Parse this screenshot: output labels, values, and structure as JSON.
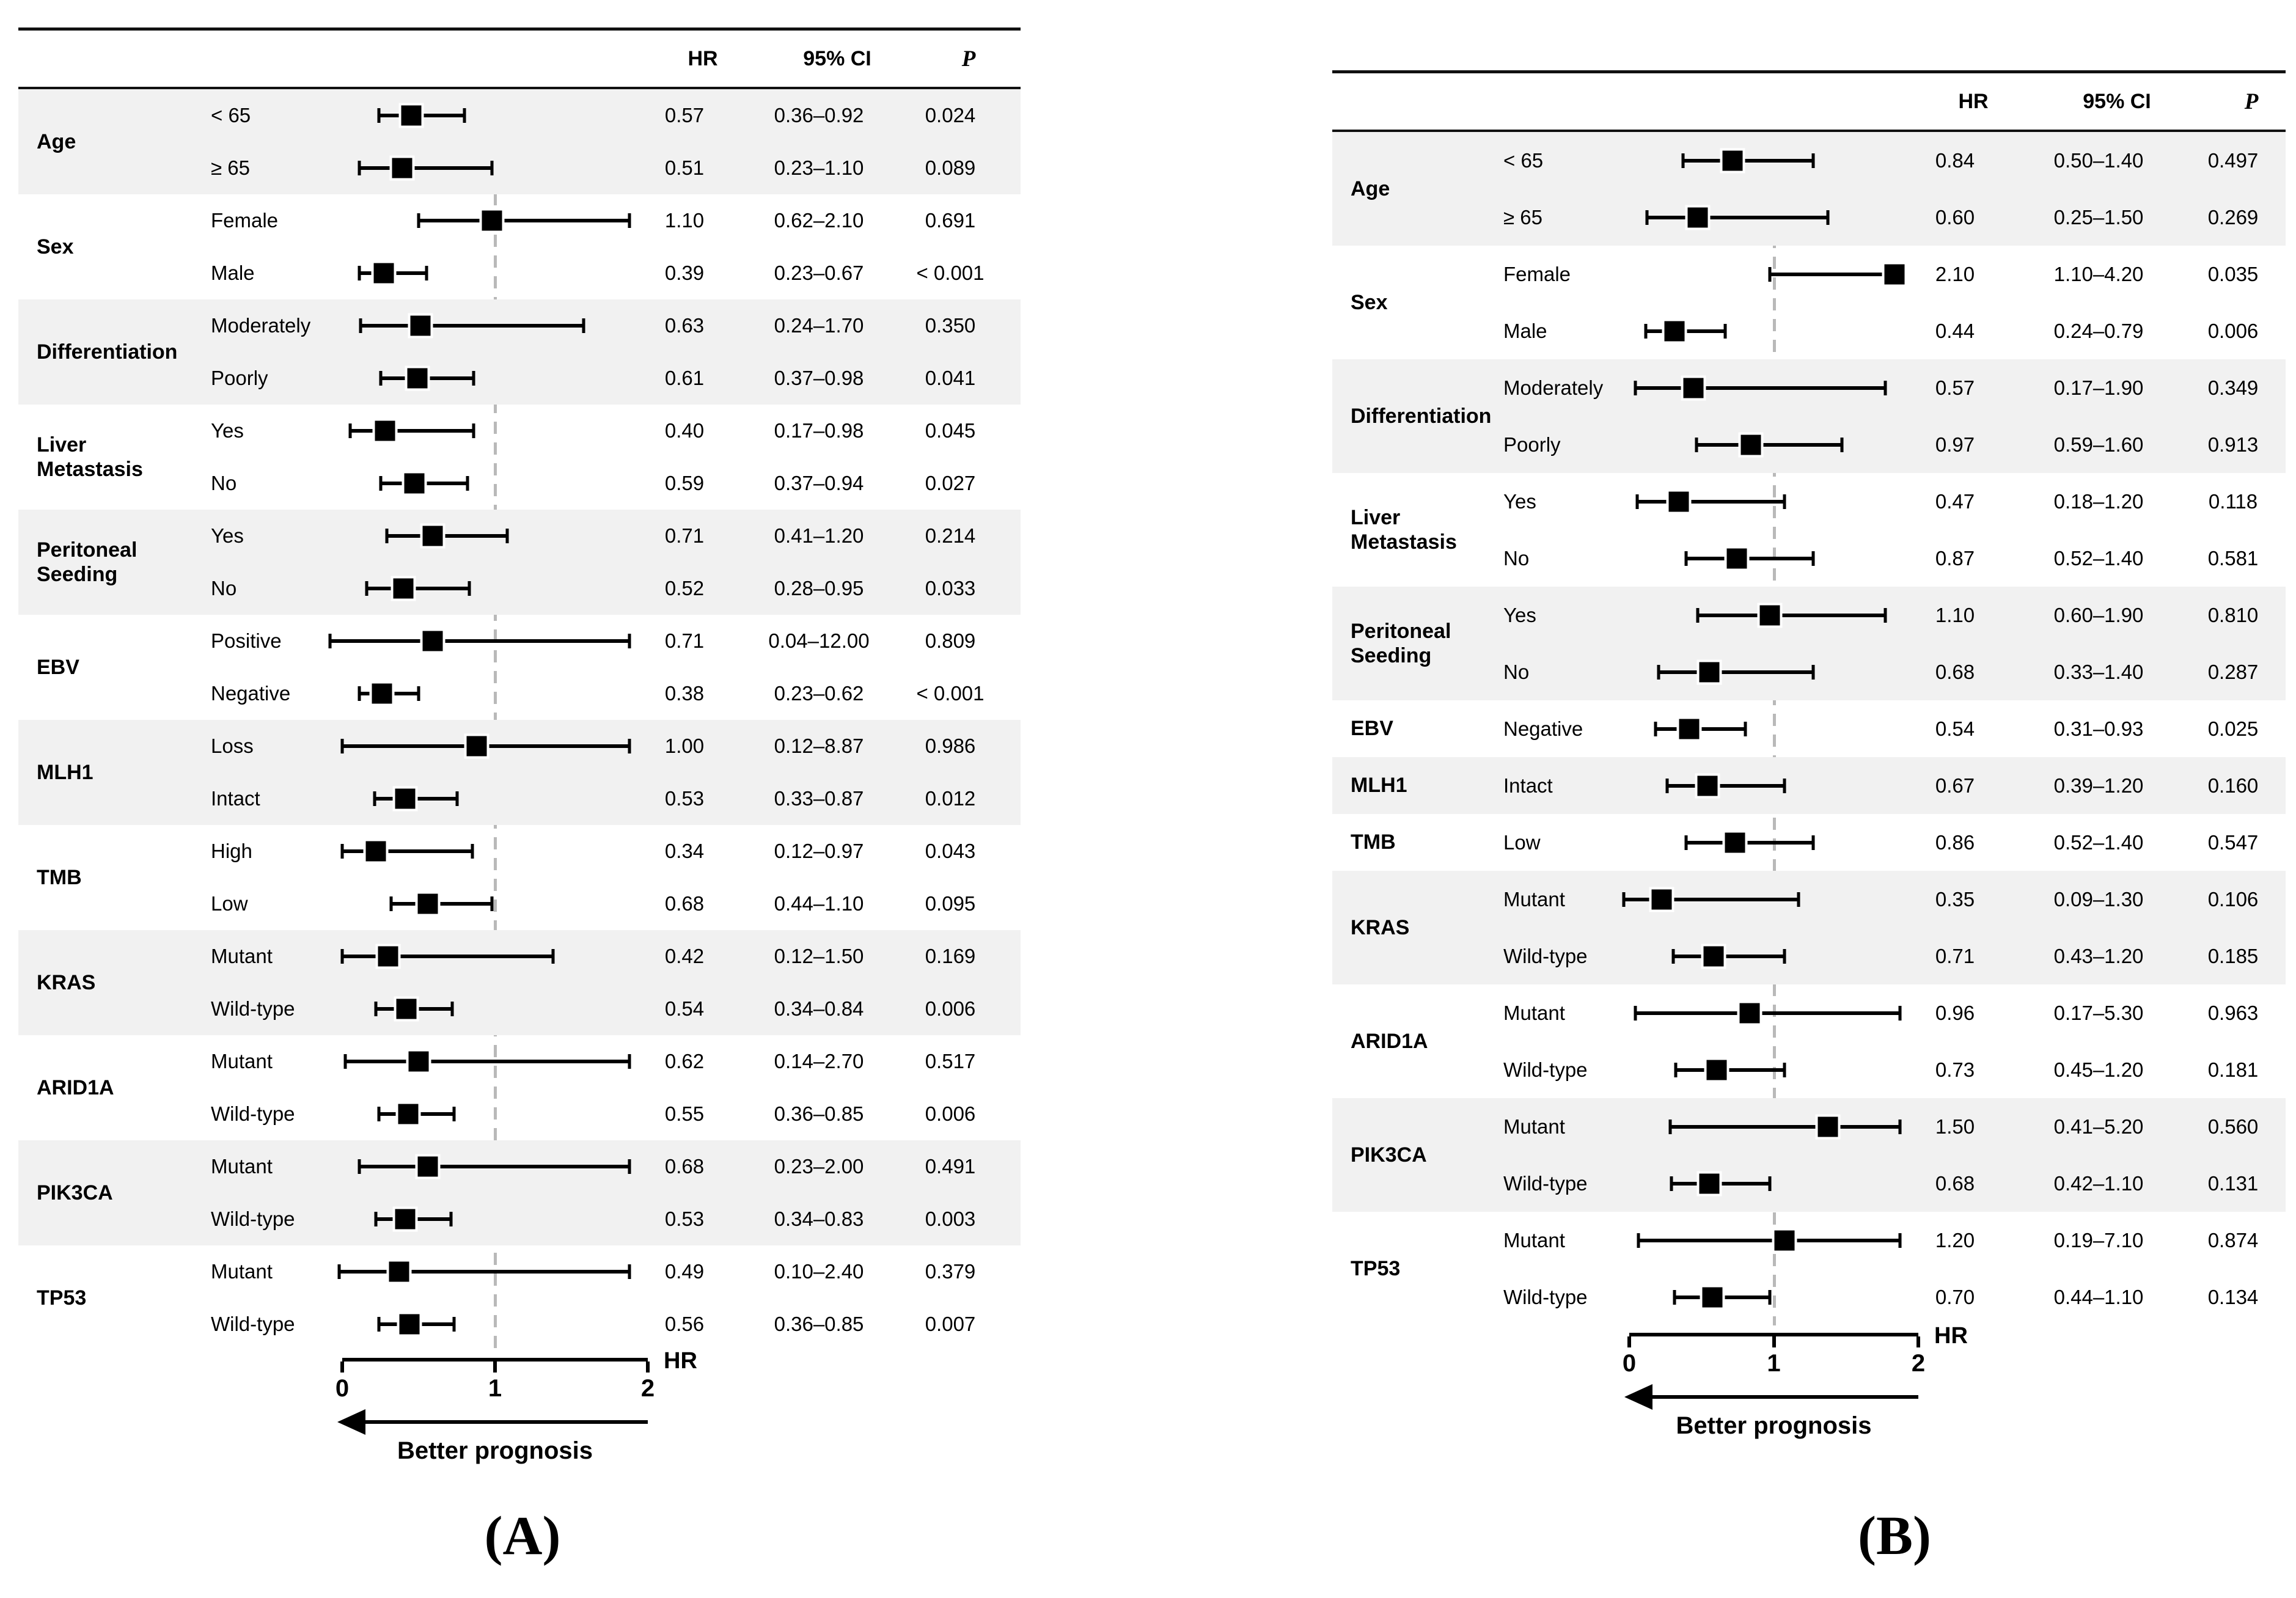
{
  "figure": {
    "captions": {
      "a": "(A)",
      "b": "(B)"
    },
    "colors": {
      "shade": "#f1f1f1",
      "dashed_reference_line": "#b9b9b9",
      "ink": "#000000"
    },
    "better_prognosis_label": "Better prognosis",
    "axis_label": "HR"
  },
  "chart_data": [
    {
      "type": "forest",
      "panel": "A",
      "columns": [
        "HR",
        "95% CI",
        "P"
      ],
      "xlabel": "HR",
      "xlim": [
        0,
        2
      ],
      "x_ticks": [
        "0",
        "1",
        "2"
      ],
      "reference_line": 1,
      "arrow_label": "Better prognosis",
      "legend_position": "none",
      "groups": [
        {
          "category": "Age",
          "rows": [
            {
              "label": "< 65",
              "hr": 0.57,
              "lo": 0.36,
              "hi": 0.92,
              "hr_text": "0.57",
              "ci_text": "0.36–0.92",
              "p_text": "0.024"
            },
            {
              "label": "≥ 65",
              "hr": 0.51,
              "lo": 0.23,
              "hi": 1.1,
              "hr_text": "0.51",
              "ci_text": "0.23–1.10",
              "p_text": "0.089"
            }
          ]
        },
        {
          "category": "Sex",
          "rows": [
            {
              "label": "Female",
              "hr": 1.1,
              "lo": 0.62,
              "hi": 2.1,
              "hr_text": "1.10",
              "ci_text": "0.62–2.10",
              "p_text": "0.691"
            },
            {
              "label": "Male",
              "hr": 0.39,
              "lo": 0.23,
              "hi": 0.67,
              "hr_text": "0.39",
              "ci_text": "0.23–0.67",
              "p_text": "< 0.001"
            }
          ]
        },
        {
          "category": "Differentiation",
          "rows": [
            {
              "label": "Moderately",
              "hr": 0.63,
              "lo": 0.24,
              "hi": 1.7,
              "hr_text": "0.63",
              "ci_text": "0.24–1.70",
              "p_text": "0.350"
            },
            {
              "label": "Poorly",
              "hr": 0.61,
              "lo": 0.37,
              "hi": 0.98,
              "hr_text": "0.61",
              "ci_text": "0.37–0.98",
              "p_text": "0.041"
            }
          ]
        },
        {
          "category": "Liver\nMetastasis",
          "rows": [
            {
              "label": "Yes",
              "hr": 0.4,
              "lo": 0.17,
              "hi": 0.98,
              "hr_text": "0.40",
              "ci_text": "0.17–0.98",
              "p_text": "0.045"
            },
            {
              "label": "No",
              "hr": 0.59,
              "lo": 0.37,
              "hi": 0.94,
              "hr_text": "0.59",
              "ci_text": "0.37–0.94",
              "p_text": "0.027"
            }
          ]
        },
        {
          "category": "Peritoneal\nSeeding",
          "rows": [
            {
              "label": "Yes",
              "hr": 0.71,
              "lo": 0.41,
              "hi": 1.2,
              "hr_text": "0.71",
              "ci_text": "0.41–1.20",
              "p_text": "0.214"
            },
            {
              "label": "No",
              "hr": 0.52,
              "lo": 0.28,
              "hi": 0.95,
              "hr_text": "0.52",
              "ci_text": "0.28–0.95",
              "p_text": "0.033"
            }
          ]
        },
        {
          "category": "EBV",
          "rows": [
            {
              "label": "Positive",
              "hr": 0.71,
              "lo": 0.04,
              "hi": 12.0,
              "hr_text": "0.71",
              "ci_text": "0.04–12.00",
              "p_text": "0.809"
            },
            {
              "label": "Negative",
              "hr": 0.38,
              "lo": 0.23,
              "hi": 0.62,
              "hr_text": "0.38",
              "ci_text": "0.23–0.62",
              "p_text": "< 0.001"
            }
          ]
        },
        {
          "category": "MLH1",
          "rows": [
            {
              "label": "Loss",
              "hr": 1.0,
              "lo": 0.12,
              "hi": 8.87,
              "hr_text": "1.00",
              "ci_text": "0.12–8.87",
              "p_text": "0.986"
            },
            {
              "label": "Intact",
              "hr": 0.53,
              "lo": 0.33,
              "hi": 0.87,
              "hr_text": "0.53",
              "ci_text": "0.33–0.87",
              "p_text": "0.012"
            }
          ]
        },
        {
          "category": "TMB",
          "rows": [
            {
              "label": "High",
              "hr": 0.34,
              "lo": 0.12,
              "hi": 0.97,
              "hr_text": "0.34",
              "ci_text": "0.12–0.97",
              "p_text": "0.043"
            },
            {
              "label": "Low",
              "hr": 0.68,
              "lo": 0.44,
              "hi": 1.1,
              "hr_text": "0.68",
              "ci_text": "0.44–1.10",
              "p_text": "0.095"
            }
          ]
        },
        {
          "category": "KRAS",
          "rows": [
            {
              "label": "Mutant",
              "hr": 0.42,
              "lo": 0.12,
              "hi": 1.5,
              "hr_text": "0.42",
              "ci_text": "0.12–1.50",
              "p_text": "0.169"
            },
            {
              "label": "Wild-type",
              "hr": 0.54,
              "lo": 0.34,
              "hi": 0.84,
              "hr_text": "0.54",
              "ci_text": "0.34–0.84",
              "p_text": "0.006"
            }
          ]
        },
        {
          "category": "ARID1A",
          "rows": [
            {
              "label": "Mutant",
              "hr": 0.62,
              "lo": 0.14,
              "hi": 2.7,
              "hr_text": "0.62",
              "ci_text": "0.14–2.70",
              "p_text": "0.517"
            },
            {
              "label": "Wild-type",
              "hr": 0.55,
              "lo": 0.36,
              "hi": 0.85,
              "hr_text": "0.55",
              "ci_text": "0.36–0.85",
              "p_text": "0.006"
            }
          ]
        },
        {
          "category": "PIK3CA",
          "rows": [
            {
              "label": "Mutant",
              "hr": 0.68,
              "lo": 0.23,
              "hi": 2.0,
              "hr_text": "0.68",
              "ci_text": "0.23–2.00",
              "p_text": "0.491"
            },
            {
              "label": "Wild-type",
              "hr": 0.53,
              "lo": 0.34,
              "hi": 0.83,
              "hr_text": "0.53",
              "ci_text": "0.34–0.83",
              "p_text": "0.003"
            }
          ]
        },
        {
          "category": "TP53",
          "rows": [
            {
              "label": "Mutant",
              "hr": 0.49,
              "lo": 0.1,
              "hi": 2.4,
              "hr_text": "0.49",
              "ci_text": "0.10–2.40",
              "p_text": "0.379"
            },
            {
              "label": "Wild-type",
              "hr": 0.56,
              "lo": 0.36,
              "hi": 0.85,
              "hr_text": "0.56",
              "ci_text": "0.36–0.85",
              "p_text": "0.007"
            }
          ]
        }
      ]
    },
    {
      "type": "forest",
      "panel": "B",
      "columns": [
        "HR",
        "95% CI",
        "P"
      ],
      "xlabel": "HR",
      "xlim": [
        0,
        2
      ],
      "x_ticks": [
        "0",
        "1",
        "2"
      ],
      "reference_line": 1,
      "arrow_label": "Better prognosis",
      "legend_position": "none",
      "groups": [
        {
          "category": "Age",
          "rows": [
            {
              "label": "< 65",
              "hr": 0.84,
              "lo": 0.5,
              "hi": 1.4,
              "hr_text": "0.84",
              "ci_text": "0.50–1.40",
              "p_text": "0.497"
            },
            {
              "label": "≥ 65",
              "hr": 0.6,
              "lo": 0.25,
              "hi": 1.5,
              "hr_text": "0.60",
              "ci_text": "0.25–1.50",
              "p_text": "0.269"
            }
          ]
        },
        {
          "category": "Sex",
          "rows": [
            {
              "label": "Female",
              "hr": 2.1,
              "lo": 1.1,
              "hi": 4.2,
              "hr_text": "2.10",
              "ci_text": "1.10–4.20",
              "p_text": "0.035"
            },
            {
              "label": "Male",
              "hr": 0.44,
              "lo": 0.24,
              "hi": 0.79,
              "hr_text": "0.44",
              "ci_text": "0.24–0.79",
              "p_text": "0.006"
            }
          ]
        },
        {
          "category": "Differentiation",
          "rows": [
            {
              "label": "Moderately",
              "hr": 0.57,
              "lo": 0.17,
              "hi": 1.9,
              "hr_text": "0.57",
              "ci_text": "0.17–1.90",
              "p_text": "0.349"
            },
            {
              "label": "Poorly",
              "hr": 0.97,
              "lo": 0.59,
              "hi": 1.6,
              "hr_text": "0.97",
              "ci_text": "0.59–1.60",
              "p_text": "0.913"
            }
          ]
        },
        {
          "category": "Liver\nMetastasis",
          "rows": [
            {
              "label": "Yes",
              "hr": 0.47,
              "lo": 0.18,
              "hi": 1.2,
              "hr_text": "0.47",
              "ci_text": "0.18–1.20",
              "p_text": "0.118"
            },
            {
              "label": "No",
              "hr": 0.87,
              "lo": 0.52,
              "hi": 1.4,
              "hr_text": "0.87",
              "ci_text": "0.52–1.40",
              "p_text": "0.581"
            }
          ]
        },
        {
          "category": "Peritoneal\nSeeding",
          "rows": [
            {
              "label": "Yes",
              "hr": 1.1,
              "lo": 0.6,
              "hi": 1.9,
              "hr_text": "1.10",
              "ci_text": "0.60–1.90",
              "p_text": "0.810"
            },
            {
              "label": "No",
              "hr": 0.68,
              "lo": 0.33,
              "hi": 1.4,
              "hr_text": "0.68",
              "ci_text": "0.33–1.40",
              "p_text": "0.287"
            }
          ]
        },
        {
          "category": "EBV",
          "rows": [
            {
              "label": "Negative",
              "hr": 0.54,
              "lo": 0.31,
              "hi": 0.93,
              "hr_text": "0.54",
              "ci_text": "0.31–0.93",
              "p_text": "0.025"
            }
          ]
        },
        {
          "category": "MLH1",
          "rows": [
            {
              "label": "Intact",
              "hr": 0.67,
              "lo": 0.39,
              "hi": 1.2,
              "hr_text": "0.67",
              "ci_text": "0.39–1.20",
              "p_text": "0.160"
            }
          ]
        },
        {
          "category": "TMB",
          "rows": [
            {
              "label": "Low",
              "hr": 0.86,
              "lo": 0.52,
              "hi": 1.4,
              "hr_text": "0.86",
              "ci_text": "0.52–1.40",
              "p_text": "0.547"
            }
          ]
        },
        {
          "category": "KRAS",
          "rows": [
            {
              "label": "Mutant",
              "hr": 0.35,
              "lo": 0.09,
              "hi": 1.3,
              "hr_text": "0.35",
              "ci_text": "0.09–1.30",
              "p_text": "0.106"
            },
            {
              "label": "Wild-type",
              "hr": 0.71,
              "lo": 0.43,
              "hi": 1.2,
              "hr_text": "0.71",
              "ci_text": "0.43–1.20",
              "p_text": "0.185"
            }
          ]
        },
        {
          "category": "ARID1A",
          "rows": [
            {
              "label": "Mutant",
              "hr": 0.96,
              "lo": 0.17,
              "hi": 5.3,
              "hr_text": "0.96",
              "ci_text": "0.17–5.30",
              "p_text": "0.963"
            },
            {
              "label": "Wild-type",
              "hr": 0.73,
              "lo": 0.45,
              "hi": 1.2,
              "hr_text": "0.73",
              "ci_text": "0.45–1.20",
              "p_text": "0.181"
            }
          ]
        },
        {
          "category": "PIK3CA",
          "rows": [
            {
              "label": "Mutant",
              "hr": 1.5,
              "lo": 0.41,
              "hi": 5.2,
              "hr_text": "1.50",
              "ci_text": "0.41–5.20",
              "p_text": "0.560"
            },
            {
              "label": "Wild-type",
              "hr": 0.68,
              "lo": 0.42,
              "hi": 1.1,
              "hr_text": "0.68",
              "ci_text": "0.42–1.10",
              "p_text": "0.131"
            }
          ]
        },
        {
          "category": "TP53",
          "rows": [
            {
              "label": "Mutant",
              "hr": 1.2,
              "lo": 0.19,
              "hi": 7.1,
              "hr_text": "1.20",
              "ci_text": "0.19–7.10",
              "p_text": "0.874"
            },
            {
              "label": "Wild-type",
              "hr": 0.7,
              "lo": 0.44,
              "hi": 1.1,
              "hr_text": "0.70",
              "ci_text": "0.44–1.10",
              "p_text": "0.134"
            }
          ]
        }
      ]
    }
  ]
}
